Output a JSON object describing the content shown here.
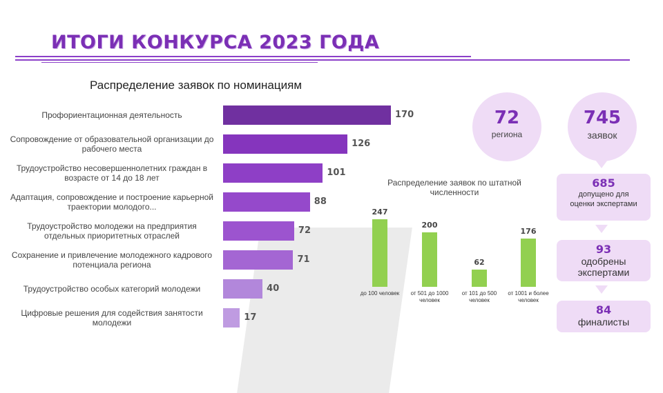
{
  "page": {
    "title": "ИТОГИ КОНКУРСА 2023 ГОДА",
    "accent_color": "#7b2fb5"
  },
  "stats": {
    "regions": {
      "value": "72",
      "label": "региона"
    },
    "applications": {
      "value": "745",
      "label": "заявок"
    }
  },
  "funnel": [
    {
      "value": "685",
      "label": "допущено для оценки экспертами"
    },
    {
      "value": "93",
      "label": "одобрены экспертами"
    },
    {
      "value": "84",
      "label": "финалисты"
    }
  ],
  "chart_data": [
    {
      "type": "bar",
      "orientation": "horizontal",
      "title": "Распределение заявок по номинациям",
      "categories": [
        "Профориентационная деятельность",
        "Сопровождение от образовательной организации до рабочего места",
        "Трудоустройство несовершеннолетних граждан в возрасте от 14 до 18 лет",
        "Адаптация, сопровождение и построение карьерной траектории молодого...",
        "Трудоустройство молодежи на предприятия отдельных приоритетных отраслей",
        "Сохранение и привлечение молодежного кадрового потенциала региона",
        "Трудоустройство особых категорий молодежи",
        "Цифровые решения для содействия занятости молодежи"
      ],
      "values": [
        170,
        126,
        101,
        88,
        72,
        71,
        40,
        17
      ],
      "colors": [
        "#7030a0",
        "#8535bd",
        "#8e3fc6",
        "#9549cb",
        "#9c54cf",
        "#a466d3",
        "#b287db",
        "#bf9be1"
      ],
      "xlim": [
        0,
        170
      ]
    },
    {
      "type": "bar",
      "title": "Распределение заявок по штатной численности",
      "categories": [
        "до 100 человек",
        "от 501 до 1000 человек",
        "от 101 до 500 человек",
        "от 1001 и более человек"
      ],
      "values": [
        247,
        200,
        62,
        176
      ],
      "color": "#92d050",
      "ylim": [
        0,
        247
      ]
    }
  ]
}
